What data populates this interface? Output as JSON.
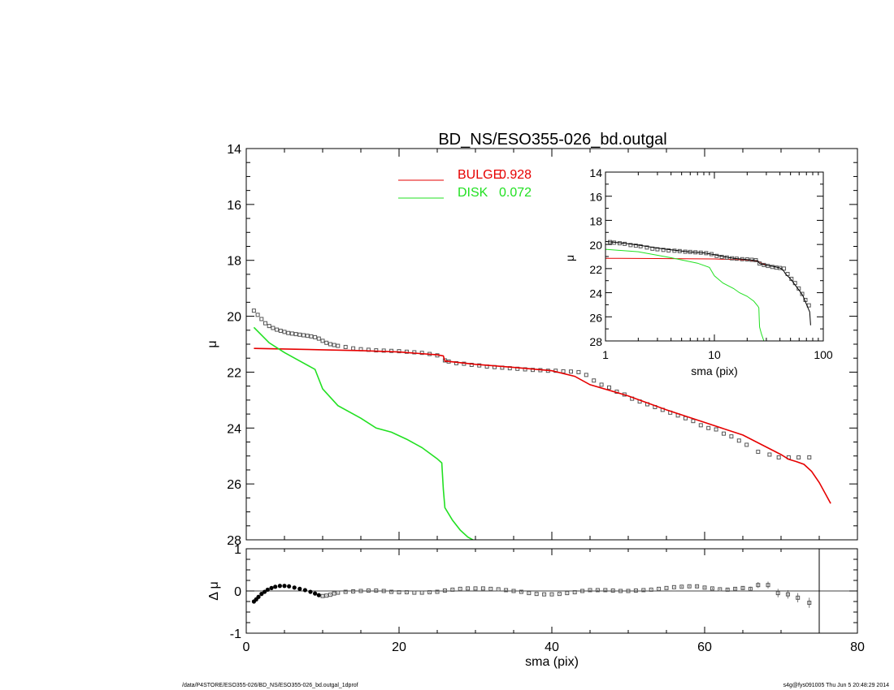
{
  "title": "BD_NS/ESO355-026_bd.outgal",
  "footer_left": "/data/P4STORE/ESO355-026/BD_NS/ESO355-026_bd.outgal_1dprof",
  "footer_right": "s4g@fys091005  Thu Jun  5 20:48:29 2014",
  "colors": {
    "bulge": "#e60000",
    "disk": "#22e022",
    "data": "#555555",
    "model": "#000000"
  },
  "chart_data": [
    {
      "id": "main",
      "type": "line",
      "title": "BD_NS/ESO355-026_bd.outgal",
      "ylabel": "μ",
      "xlim": [
        0,
        80
      ],
      "ylim": [
        28,
        14
      ],
      "yticks": [
        14,
        16,
        18,
        20,
        22,
        24,
        26,
        28
      ],
      "legend": [
        {
          "name": "BULGE",
          "value": "0.928",
          "color": "#e60000"
        },
        {
          "name": "DISK",
          "value": "0.072",
          "color": "#22e022"
        }
      ],
      "series": [
        {
          "name": "BULGE",
          "style": "line",
          "color": "#e60000",
          "x": [
            1,
            5,
            10,
            15,
            20,
            25,
            25.8,
            26,
            30,
            35,
            40,
            43,
            45,
            50,
            55,
            60,
            65,
            70,
            71,
            72,
            73,
            74,
            75,
            76.5
          ],
          "y": [
            21.15,
            21.17,
            21.2,
            21.23,
            21.28,
            21.38,
            21.42,
            21.6,
            21.72,
            21.83,
            21.95,
            22.15,
            22.45,
            22.85,
            23.35,
            23.8,
            24.25,
            24.95,
            25.12,
            25.2,
            25.3,
            25.55,
            25.95,
            26.7
          ]
        },
        {
          "name": "DISK",
          "style": "line",
          "color": "#22e022",
          "x": [
            1,
            3,
            5,
            7,
            9,
            10,
            12,
            15,
            17,
            19,
            21,
            23,
            25,
            25.6,
            25.8,
            26,
            27,
            28,
            29,
            30
          ],
          "y": [
            20.4,
            20.95,
            21.3,
            21.6,
            21.9,
            22.6,
            23.2,
            23.65,
            24.0,
            24.15,
            24.4,
            24.7,
            25.1,
            25.25,
            26.2,
            26.85,
            27.3,
            27.65,
            27.9,
            28.05
          ]
        },
        {
          "name": "data",
          "style": "markers",
          "color": "#555555",
          "x": [
            1.0,
            1.5,
            2.0,
            2.5,
            3.0,
            3.5,
            4.0,
            4.5,
            5.0,
            5.5,
            6.0,
            6.5,
            7.0,
            7.5,
            8.0,
            8.5,
            9.0,
            9.5,
            10.0,
            10.5,
            11.0,
            11.5,
            12.0,
            13.0,
            14.0,
            15.0,
            16.0,
            17.0,
            18.0,
            19.0,
            20.0,
            21.0,
            22.0,
            23.0,
            24.0,
            25.0,
            26.0,
            26.5,
            27.5,
            28.5,
            29.5,
            30.5,
            31.5,
            32.5,
            33.5,
            34.5,
            35.5,
            36.5,
            37.5,
            38.5,
            39.5,
            40.5,
            41.5,
            42.5,
            43.5,
            44.5,
            45.5,
            46.5,
            47.5,
            48.5,
            49.5,
            50.5,
            51.5,
            52.5,
            53.5,
            54.5,
            55.5,
            56.5,
            57.5,
            58.5,
            59.5,
            60.5,
            61.5,
            62.5,
            63.5,
            64.5,
            65.5,
            67.0,
            68.5,
            69.7,
            71.0,
            72.3,
            73.7
          ],
          "y": [
            19.8,
            19.95,
            20.1,
            20.25,
            20.35,
            20.42,
            20.48,
            20.52,
            20.56,
            20.6,
            20.62,
            20.64,
            20.66,
            20.68,
            20.7,
            20.72,
            20.75,
            20.8,
            20.88,
            20.95,
            21.0,
            21.03,
            21.06,
            21.1,
            21.15,
            21.18,
            21.2,
            21.22,
            21.23,
            21.24,
            21.25,
            21.27,
            21.29,
            21.31,
            21.35,
            21.4,
            21.58,
            21.62,
            21.68,
            21.7,
            21.74,
            21.76,
            21.8,
            21.82,
            21.84,
            21.86,
            21.88,
            21.9,
            21.92,
            21.93,
            21.95,
            21.95,
            21.97,
            21.98,
            22.0,
            22.1,
            22.3,
            22.45,
            22.55,
            22.7,
            22.8,
            22.95,
            23.05,
            23.15,
            23.25,
            23.35,
            23.45,
            23.55,
            23.65,
            23.75,
            23.9,
            24.0,
            24.05,
            24.2,
            24.3,
            24.45,
            24.6,
            24.85,
            24.95,
            25.05,
            25.05,
            25.05,
            25.05
          ]
        }
      ]
    },
    {
      "id": "inset",
      "type": "line",
      "xlabel": "sma (pix)",
      "ylabel": "μ",
      "xscale": "log",
      "xlim": [
        1,
        100
      ],
      "xticks": [
        1,
        10,
        100
      ],
      "ylim": [
        28,
        14
      ],
      "yticks": [
        14,
        16,
        18,
        20,
        22,
        24,
        26,
        28
      ],
      "series": [
        {
          "name": "BULGE",
          "style": "line",
          "color": "#e60000",
          "x": [
            1,
            3,
            10,
            20,
            25,
            28,
            30
          ],
          "y": [
            21.15,
            21.17,
            21.2,
            21.28,
            21.38,
            21.6,
            21.7
          ]
        },
        {
          "name": "DISK",
          "style": "line",
          "color": "#22e022",
          "x": [
            1,
            2,
            4,
            7,
            9,
            10,
            12,
            15,
            17,
            20,
            23,
            25,
            25.6,
            25.8,
            26,
            27,
            28.5
          ],
          "y": [
            20.4,
            20.6,
            21.1,
            21.55,
            21.9,
            22.6,
            23.2,
            23.65,
            24.0,
            24.3,
            24.7,
            25.1,
            25.25,
            26.2,
            26.85,
            27.4,
            28.0
          ]
        },
        {
          "name": "model",
          "style": "line",
          "color": "#000000",
          "x": [
            1,
            1.5,
            2,
            3,
            4,
            5,
            6,
            8,
            10,
            12,
            15,
            20,
            25,
            26,
            30,
            35,
            40,
            43,
            45,
            50,
            55,
            60,
            65,
            70,
            75,
            76.5
          ],
          "y": [
            19.75,
            19.9,
            20.05,
            20.3,
            20.45,
            20.55,
            20.62,
            20.7,
            20.85,
            21.0,
            21.15,
            21.25,
            21.35,
            21.58,
            21.72,
            21.83,
            21.95,
            22.15,
            22.45,
            22.85,
            23.35,
            23.8,
            24.25,
            24.95,
            25.6,
            26.7
          ]
        },
        {
          "name": "data",
          "style": "markers",
          "color": "#555555",
          "x": [
            1.1,
            1.2,
            1.35,
            1.5,
            1.7,
            1.9,
            2.1,
            2.4,
            2.7,
            3.0,
            3.4,
            3.8,
            4.3,
            4.8,
            5.4,
            6.0,
            6.7,
            7.5,
            8.4,
            9.4,
            10.5,
            11.7,
            13.0,
            14.5,
            16.0,
            18.0,
            20.0,
            22.0,
            24.0,
            26.0,
            28.5,
            31.0,
            34.0,
            37.0,
            40.0,
            43.5,
            47.0,
            51.0,
            55.0,
            59.5,
            64.0,
            68.5,
            73.7
          ],
          "y": [
            19.8,
            19.85,
            19.9,
            19.95,
            20.05,
            20.1,
            20.15,
            20.25,
            20.35,
            20.4,
            20.45,
            20.5,
            20.52,
            20.55,
            20.6,
            20.62,
            20.65,
            20.68,
            20.72,
            20.8,
            20.95,
            21.03,
            21.08,
            21.15,
            21.18,
            21.22,
            21.24,
            21.27,
            21.3,
            21.58,
            21.7,
            21.78,
            21.86,
            21.92,
            21.95,
            22.0,
            22.45,
            22.85,
            23.2,
            23.65,
            24.1,
            24.6,
            25.05
          ]
        }
      ]
    },
    {
      "id": "residual",
      "type": "scatter",
      "xlabel": "sma (pix)",
      "ylabel": "Δ μ",
      "xlim": [
        0,
        80
      ],
      "xticks": [
        0,
        20,
        40,
        60,
        80
      ],
      "ylim": [
        -1,
        1
      ],
      "yticks": [
        -1,
        0,
        1
      ],
      "vline_x": 75,
      "series": [
        {
          "name": "residual",
          "style": "markers",
          "color": "#555555",
          "x": [
            1.0,
            1.3,
            1.6,
            2.0,
            2.4,
            2.8,
            3.3,
            3.8,
            4.4,
            5.0,
            5.6,
            6.3,
            7.0,
            7.7,
            8.4,
            9.0,
            9.5,
            10.0,
            10.5,
            11.0,
            11.5,
            12.0,
            13.0,
            14.0,
            15.0,
            16.0,
            17.0,
            18.0,
            19.0,
            20.0,
            21.0,
            22.0,
            23.0,
            24.0,
            25.0,
            26.0,
            27.0,
            28.0,
            29.0,
            30.0,
            31.0,
            32.0,
            33.0,
            34.0,
            35.0,
            36.0,
            37.0,
            38.0,
            39.0,
            40.0,
            41.0,
            42.0,
            43.0,
            44.0,
            45.0,
            46.0,
            47.0,
            48.0,
            49.0,
            50.0,
            51.0,
            52.0,
            53.0,
            54.0,
            55.0,
            56.0,
            57.0,
            58.0,
            59.0,
            60.0,
            61.0,
            62.0,
            63.0,
            64.0,
            65.0,
            66.0,
            67.0,
            68.3,
            69.6,
            70.9,
            72.2,
            73.7
          ],
          "y": [
            -0.25,
            -0.2,
            -0.14,
            -0.07,
            -0.02,
            0.03,
            0.07,
            0.1,
            0.12,
            0.12,
            0.11,
            0.08,
            0.05,
            0.02,
            -0.02,
            -0.06,
            -0.1,
            -0.12,
            -0.11,
            -0.09,
            -0.06,
            -0.04,
            -0.02,
            -0.01,
            0.0,
            0.01,
            0.01,
            0.0,
            -0.02,
            -0.03,
            -0.03,
            -0.04,
            -0.04,
            -0.03,
            -0.02,
            0.01,
            0.03,
            0.05,
            0.06,
            0.06,
            0.06,
            0.05,
            0.04,
            0.02,
            0.0,
            -0.02,
            -0.05,
            -0.07,
            -0.08,
            -0.08,
            -0.07,
            -0.05,
            -0.03,
            0.0,
            0.02,
            0.02,
            0.02,
            0.01,
            0.0,
            0.0,
            0.01,
            0.02,
            0.03,
            0.05,
            0.07,
            0.09,
            0.1,
            0.11,
            0.11,
            0.08,
            0.06,
            0.04,
            0.03,
            0.05,
            0.07,
            0.05,
            0.14,
            0.14,
            -0.05,
            -0.08,
            -0.16,
            -0.28
          ],
          "err": [
            0.01,
            0.01,
            0.01,
            0.01,
            0.01,
            0.01,
            0.01,
            0.01,
            0.01,
            0.01,
            0.01,
            0.01,
            0.01,
            0.01,
            0.01,
            0.01,
            0.01,
            0.01,
            0.01,
            0.01,
            0.01,
            0.01,
            0.01,
            0.01,
            0.01,
            0.01,
            0.01,
            0.01,
            0.01,
            0.01,
            0.01,
            0.01,
            0.01,
            0.01,
            0.01,
            0.01,
            0.01,
            0.01,
            0.01,
            0.01,
            0.01,
            0.01,
            0.01,
            0.01,
            0.01,
            0.01,
            0.01,
            0.01,
            0.01,
            0.01,
            0.01,
            0.01,
            0.01,
            0.01,
            0.01,
            0.01,
            0.01,
            0.01,
            0.01,
            0.01,
            0.01,
            0.01,
            0.01,
            0.01,
            0.01,
            0.01,
            0.02,
            0.02,
            0.02,
            0.02,
            0.02,
            0.02,
            0.03,
            0.03,
            0.04,
            0.05,
            0.07,
            0.08,
            0.1,
            0.1,
            0.11,
            0.12
          ]
        }
      ]
    }
  ]
}
